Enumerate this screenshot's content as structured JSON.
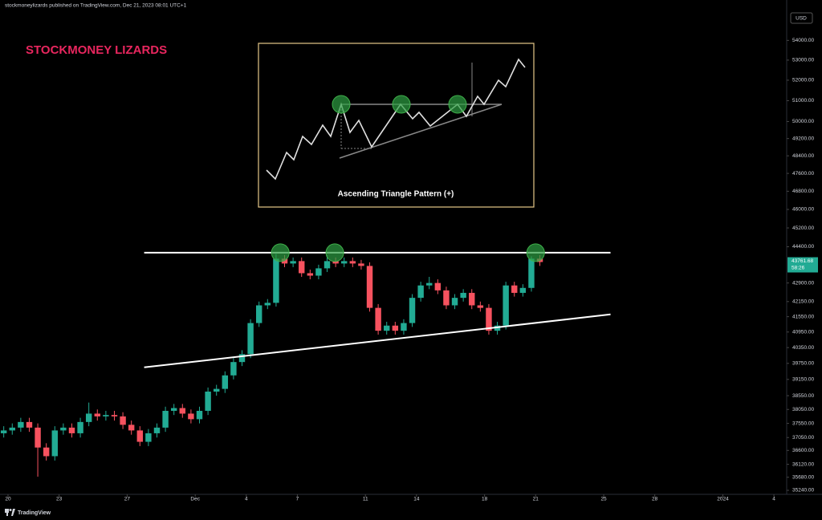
{
  "header": "stockmoneylizards published on TradingView.com, Dec 21, 2023 08:01 UTC+1",
  "footer": {
    "brand": "TradingView"
  },
  "chart_data": {
    "type": "candlestick",
    "title": "STOCKMONEY LIZARDS",
    "currency": "USD",
    "inset_caption": "Ascending Triangle Pattern (+)",
    "x": [
      -0.25,
      0.25,
      0.75,
      1.25,
      1.75,
      2.25,
      2.75,
      3.25,
      3.75,
      4.25,
      4.75,
      5.25,
      5.75,
      6.25,
      6.75,
      7.25,
      7.75,
      8.25,
      8.75,
      9.25,
      9.75,
      10.25,
      10.75,
      11.25,
      11.75,
      12.25,
      12.75,
      13.25,
      13.75,
      14.25,
      14.75,
      15.25,
      15.75,
      16.25,
      16.75,
      17.25,
      17.75,
      18.25,
      18.75,
      19.25,
      19.75,
      20.25,
      20.75,
      21.25,
      21.75,
      22.25,
      22.75,
      23.25,
      23.75,
      24.25,
      24.75,
      25.25,
      25.75,
      26.25,
      26.75,
      27.25,
      27.75,
      28.25,
      28.75,
      29.25,
      29.75,
      30.25,
      30.75,
      31.25
    ],
    "open": [
      37200,
      37300,
      37400,
      37600,
      37400,
      36700,
      36400,
      37300,
      37400,
      37200,
      37600,
      37900,
      37800,
      37850,
      37800,
      37500,
      37300,
      36900,
      37200,
      37400,
      38000,
      38100,
      37900,
      37700,
      38000,
      38700,
      38800,
      39300,
      39800,
      40100,
      41300,
      42000,
      42100,
      43900,
      43700,
      43800,
      43300,
      43200,
      43500,
      43800,
      43700,
      43800,
      43700,
      43600,
      41900,
      41000,
      41200,
      41000,
      41300,
      42300,
      42800,
      42900,
      42600,
      42000,
      42300,
      42500,
      42000,
      41900,
      41000,
      41200,
      42800,
      42500,
      42700,
      43900
    ],
    "high": [
      37450,
      37550,
      37750,
      37750,
      37550,
      36850,
      37450,
      37550,
      37550,
      37750,
      38300,
      38050,
      38000,
      38000,
      37950,
      37650,
      37450,
      37350,
      37550,
      38150,
      38250,
      38250,
      38050,
      38150,
      38850,
      38950,
      39450,
      39950,
      40250,
      41450,
      42150,
      42250,
      44100,
      44050,
      43950,
      43950,
      43450,
      43650,
      44050,
      43950,
      43950,
      43950,
      43850,
      43750,
      42050,
      41350,
      41350,
      41450,
      42450,
      42950,
      43150,
      43050,
      42750,
      42450,
      42650,
      42650,
      42150,
      42050,
      41350,
      42950,
      42950,
      42850,
      44000,
      44050
    ],
    "low": [
      37050,
      37150,
      37250,
      37250,
      35700,
      36250,
      36250,
      37150,
      37050,
      37050,
      37450,
      37650,
      37650,
      37650,
      37350,
      37150,
      36750,
      36750,
      37050,
      37250,
      37850,
      37750,
      37550,
      37550,
      37850,
      38550,
      38650,
      39150,
      39650,
      39950,
      41150,
      41850,
      41950,
      43550,
      43550,
      43150,
      43050,
      43050,
      43350,
      43550,
      43550,
      43550,
      43450,
      41750,
      40850,
      40850,
      40850,
      40850,
      41150,
      42150,
      42650,
      42450,
      41850,
      41850,
      42150,
      41850,
      41750,
      40850,
      40850,
      41050,
      42350,
      42350,
      42550,
      43600
    ],
    "close": [
      37300,
      37400,
      37600,
      37400,
      36700,
      36400,
      37300,
      37400,
      37200,
      37600,
      37900,
      37800,
      37850,
      37800,
      37500,
      37300,
      36900,
      37200,
      37400,
      38000,
      38100,
      37900,
      37700,
      38000,
      38700,
      38800,
      39300,
      39800,
      40100,
      41300,
      42000,
      42100,
      43900,
      43700,
      43800,
      43300,
      43200,
      43500,
      43800,
      43700,
      43800,
      43700,
      43600,
      41900,
      41000,
      41200,
      41000,
      41300,
      42300,
      42800,
      42900,
      42600,
      42000,
      42300,
      42500,
      42000,
      41900,
      41000,
      41200,
      42800,
      42500,
      42700,
      43900,
      43761.68
    ],
    "up_color": "#22ab94",
    "down_color": "#f7525f",
    "xlim": [
      -0.47,
      45.75
    ],
    "xticks": [
      {
        "value": 0,
        "label": "20"
      },
      {
        "value": 3,
        "label": "23"
      },
      {
        "value": 7,
        "label": "27"
      },
      {
        "value": 11,
        "label": "Dec"
      },
      {
        "value": 14,
        "label": "4"
      },
      {
        "value": 17,
        "label": "7"
      },
      {
        "value": 21,
        "label": "11"
      },
      {
        "value": 24,
        "label": "14"
      },
      {
        "value": 28,
        "label": "18"
      },
      {
        "value": 31,
        "label": "21"
      },
      {
        "value": 35,
        "label": "25"
      },
      {
        "value": 38,
        "label": "28"
      },
      {
        "value": 42,
        "label": "2024"
      },
      {
        "value": 45,
        "label": "4"
      }
    ],
    "ylim": [
      35000,
      55600
    ],
    "log_scale": true,
    "grid": false,
    "yticks": [
      {
        "value": 54000,
        "label": "54000.00"
      },
      {
        "value": 53000,
        "label": "53000.00"
      },
      {
        "value": 52000,
        "label": "52000.00"
      },
      {
        "value": 51000,
        "label": "51000.00"
      },
      {
        "value": 50000,
        "label": "50000.00"
      },
      {
        "value": 49200,
        "label": "49200.00"
      },
      {
        "value": 48400,
        "label": "48400.00"
      },
      {
        "value": 47600,
        "label": "47600.00"
      },
      {
        "value": 46800,
        "label": "46800.00"
      },
      {
        "value": 46000,
        "label": "46000.00"
      },
      {
        "value": 45200,
        "label": "45200.00"
      },
      {
        "value": 44400,
        "label": "44400.00"
      },
      {
        "value": 42900,
        "label": "42900.00"
      },
      {
        "value": 42150,
        "label": "42150.00"
      },
      {
        "value": 41550,
        "label": "41550.00"
      },
      {
        "value": 40950,
        "label": "40950.00"
      },
      {
        "value": 40350,
        "label": "40350.00"
      },
      {
        "value": 39750,
        "label": "39750.00"
      },
      {
        "value": 39150,
        "label": "39150.00"
      },
      {
        "value": 38550,
        "label": "38550.00"
      },
      {
        "value": 38050,
        "label": "38050.00"
      },
      {
        "value": 37550,
        "label": "37550.00"
      },
      {
        "value": 37050,
        "label": "37050.00"
      },
      {
        "value": 36600,
        "label": "36600.00"
      },
      {
        "value": 36120,
        "label": "36120.00"
      },
      {
        "value": 35680,
        "label": "35680.00"
      },
      {
        "value": 35240,
        "label": "35240.00"
      }
    ],
    "last_price": 43761.68,
    "countdown": "58:26",
    "trendlines": [
      {
        "x": [
          8.0,
          35.4
        ],
        "y": [
          44150,
          44150
        ]
      },
      {
        "x": [
          8.0,
          35.4
        ],
        "y": [
          39600,
          41640
        ]
      }
    ],
    "highlights": {
      "x": [
        16.0,
        19.2,
        31.0
      ],
      "y": [
        44150,
        44150,
        44150
      ]
    }
  }
}
